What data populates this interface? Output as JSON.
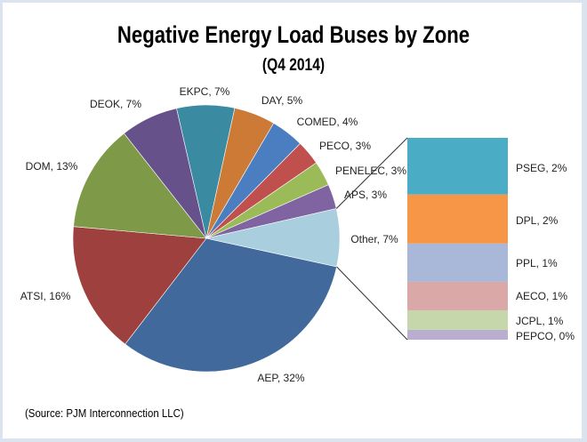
{
  "chart_data": {
    "type": "pie",
    "subtype": "pie-of-bar",
    "title": "Negative Energy Load Buses by Zone",
    "subtitle": "(Q4 2014)",
    "source": "(Source: PJM Interconnection LLC)",
    "main_pie": [
      {
        "name": "AEP",
        "value": 32,
        "label": "AEP, 32%",
        "color": "#41699c"
      },
      {
        "name": "ATSI",
        "value": 16,
        "label": "ATSI, 16%",
        "color": "#9e413e"
      },
      {
        "name": "DOM",
        "value": 13,
        "label": "DOM, 13%",
        "color": "#7e9a48"
      },
      {
        "name": "DEOK",
        "value": 7,
        "label": "DEOK, 7%",
        "color": "#67518a"
      },
      {
        "name": "EKPC",
        "value": 7,
        "label": "EKPC, 7%",
        "color": "#3a8aa2"
      },
      {
        "name": "DAY",
        "value": 5,
        "label": "DAY, 5%",
        "color": "#cc7a36"
      },
      {
        "name": "COMED",
        "value": 4,
        "label": "COMED, 4%",
        "color": "#4a7ec0"
      },
      {
        "name": "PECO",
        "value": 3,
        "label": "PECO, 3%",
        "color": "#c0504d"
      },
      {
        "name": "PENELEC",
        "value": 3,
        "label": "PENELEC, 3%",
        "color": "#9bbb59"
      },
      {
        "name": "APS",
        "value": 3,
        "label": "APS, 3%",
        "color": "#8064a2"
      },
      {
        "name": "Other",
        "value": 7,
        "label": "Other, 7%",
        "color": "#a9cfdf"
      }
    ],
    "other_breakdown": [
      {
        "name": "PSEG",
        "value": 1.97,
        "label": "PSEG, 2%",
        "color": "#4bacc6"
      },
      {
        "name": "DPL",
        "value": 1.7,
        "label": "DPL, 2%",
        "color": "#f79646"
      },
      {
        "name": "PPL",
        "value": 1.33,
        "label": "PPL, 1%",
        "color": "#a9b8d8"
      },
      {
        "name": "AECO",
        "value": 0.99,
        "label": "AECO, 1%",
        "color": "#dba8a8"
      },
      {
        "name": "JCPL",
        "value": 0.68,
        "label": "JCPL, 1%",
        "color": "#c6d8ab"
      },
      {
        "name": "PEPCO",
        "value": 0.34,
        "label": "PEPCO, 0%",
        "color": "#b9aed0"
      }
    ]
  }
}
